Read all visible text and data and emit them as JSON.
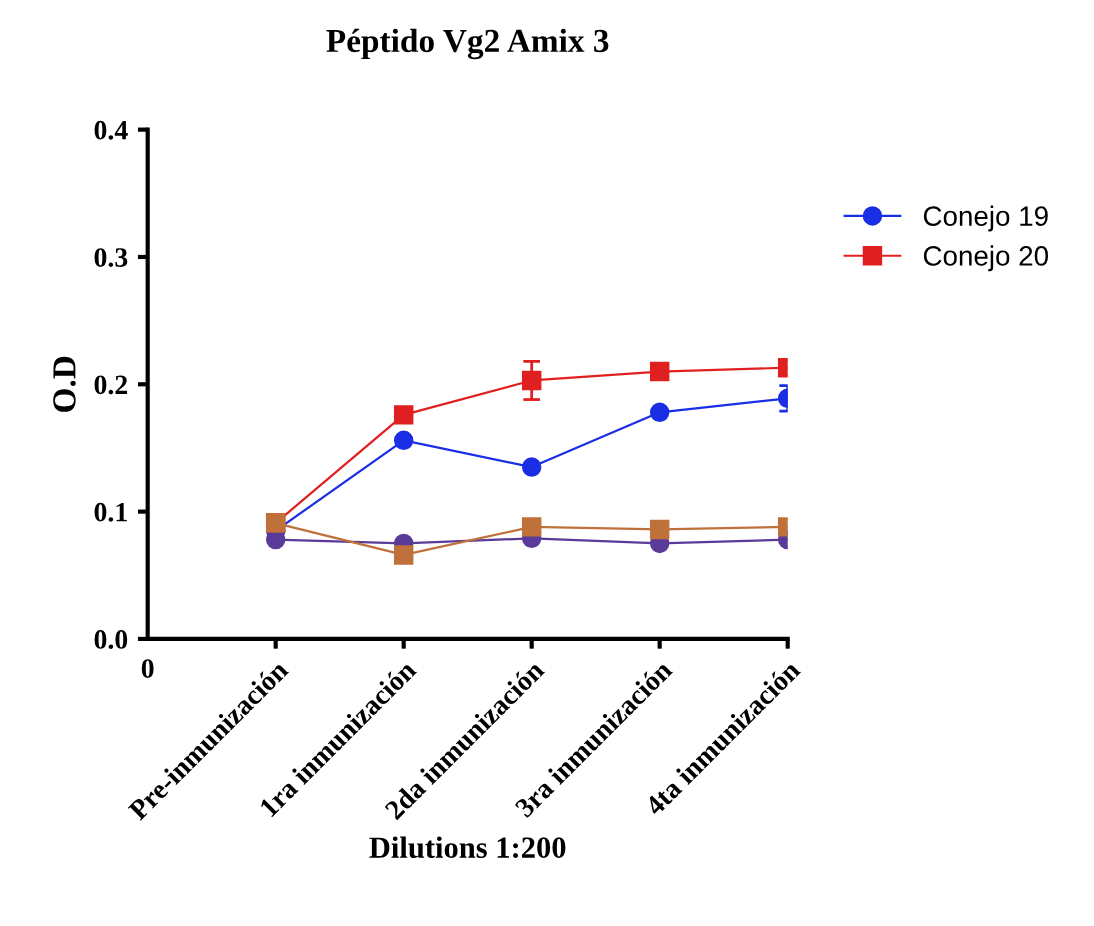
{
  "chart_data": {
    "type": "line",
    "title": "Péptido Vg2 Amix 3",
    "xlabel": "Dilutions 1:200",
    "ylabel": "O.D",
    "categories": [
      "0",
      "Pre-inmunización",
      "1ra inmunización",
      "2da inmunización",
      "3ra inmunización",
      "4ta inmunización"
    ],
    "ylim": [
      0,
      0.4
    ],
    "yticks": [
      {
        "value": 0,
        "label": "0.0"
      },
      0.1,
      0.2,
      0.3,
      0.4
    ],
    "legend": "top right",
    "line_style": "solid",
    "series": [
      {
        "name": "Conejo 19",
        "color": "#1a2ee6",
        "marker": "circle",
        "values": [
          null,
          0.085,
          0.156,
          0.135,
          0.178,
          0.189
        ],
        "errors": [
          null,
          null,
          null,
          null,
          null,
          0.01
        ]
      },
      {
        "name": "Conejo 20",
        "color": "#e02020",
        "marker": "square",
        "values": [
          null,
          0.091,
          0.176,
          0.203,
          0.21,
          0.213
        ],
        "errors": [
          null,
          null,
          null,
          0.015,
          null,
          null
        ]
      },
      {
        "color": "#5b3b9a",
        "marker": "circle",
        "values": [
          null,
          0.078,
          0.075,
          0.079,
          0.075,
          0.078
        ]
      },
      {
        "color": "#c0703a",
        "marker": "square",
        "values": [
          null,
          0.091,
          0.066,
          0.088,
          0.086,
          0.088
        ]
      }
    ]
  }
}
